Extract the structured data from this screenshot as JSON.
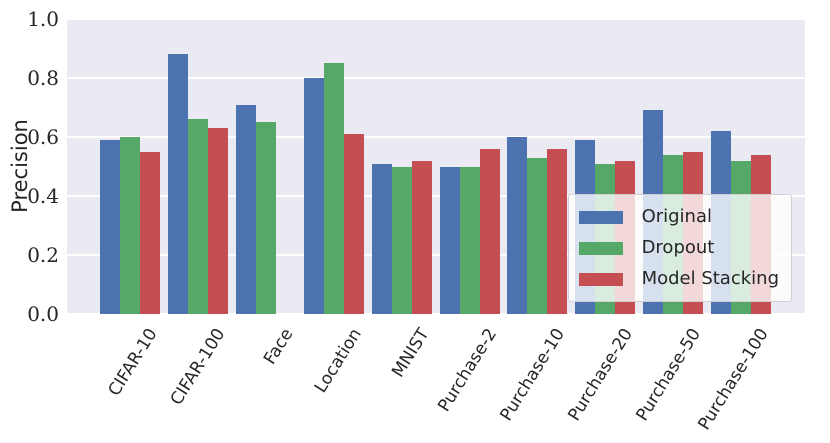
{
  "chart_data": {
    "type": "bar",
    "title": "",
    "xlabel": "",
    "ylabel": "Precision",
    "categories": [
      "CIFAR-10",
      "CIFAR-100",
      "Face",
      "Location",
      "MNIST",
      "Purchase-2",
      "Purchase-10",
      "Purchase-20",
      "Purchase-50",
      "Purchase-100"
    ],
    "series": [
      {
        "name": "Original",
        "color": "#4C72B0",
        "values": [
          0.59,
          0.88,
          0.71,
          0.8,
          0.51,
          0.5,
          0.6,
          0.59,
          0.69,
          0.62
        ]
      },
      {
        "name": "Dropout",
        "color": "#55A868",
        "values": [
          0.6,
          0.66,
          0.65,
          0.85,
          0.5,
          0.5,
          0.53,
          0.51,
          0.54,
          0.52
        ]
      },
      {
        "name": "Model Stacking",
        "color": "#C44E52",
        "values": [
          0.55,
          0.63,
          0.0,
          0.61,
          0.52,
          0.56,
          0.56,
          0.52,
          0.55,
          0.54
        ]
      }
    ],
    "ylim": [
      0.0,
      1.0
    ],
    "yticks": [
      0.0,
      0.2,
      0.4,
      0.6,
      0.8,
      1.0
    ],
    "grid": true,
    "legend_position": "lower right",
    "colors": {
      "background": "#EAEAF2",
      "gridline": "#FFFFFF",
      "text": "#262626"
    }
  }
}
